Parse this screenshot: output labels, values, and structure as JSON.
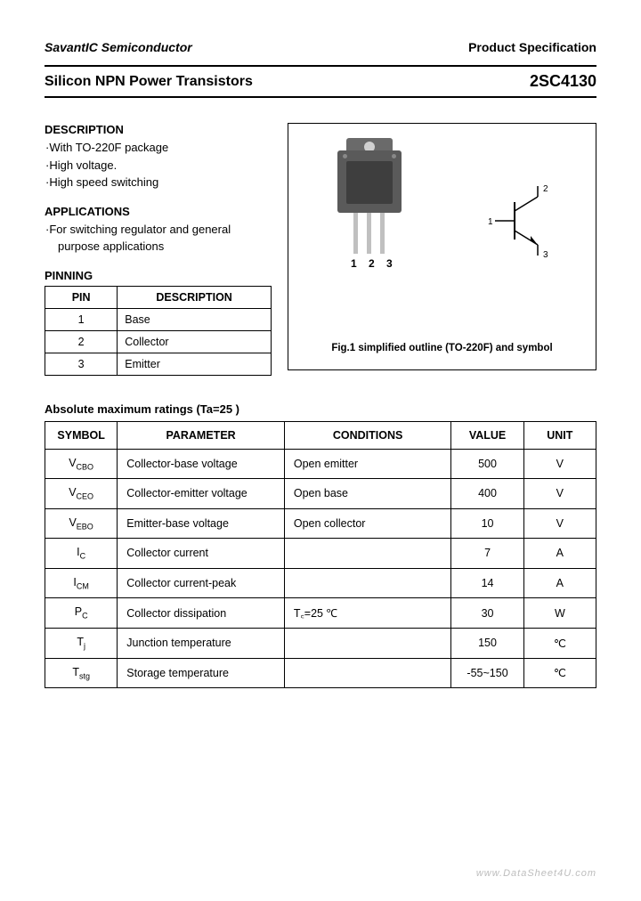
{
  "header": {
    "company": "SavantIC Semiconductor",
    "spec": "Product Specification"
  },
  "title": {
    "left": "Silicon NPN Power Transistors",
    "right": "2SC4130"
  },
  "description": {
    "heading": "DESCRIPTION",
    "items": [
      "·With TO-220F package",
      "·High voltage.",
      "·High speed switching"
    ]
  },
  "applications": {
    "heading": "APPLICATIONS",
    "line1": "·For switching regulator and general",
    "line2": "purpose applications"
  },
  "pinning": {
    "heading": "PINNING",
    "col_pin": "PIN",
    "col_desc": "DESCRIPTION",
    "rows": [
      {
        "pin": "1",
        "desc": "Base"
      },
      {
        "pin": "2",
        "desc": "Collector"
      },
      {
        "pin": "3",
        "desc": "Emitter"
      }
    ]
  },
  "figure": {
    "pin_labels": "1 2 3",
    "caption": "Fig.1 simplified outline (TO-220F) and symbol",
    "sym_labels": {
      "n1": "1",
      "n2": "2",
      "n3": "3"
    }
  },
  "ratings": {
    "heading": "Absolute maximum ratings (Ta=25 )",
    "headers": {
      "symbol": "SYMBOL",
      "parameter": "PARAMETER",
      "conditions": "CONDITIONS",
      "value": "VALUE",
      "unit": "UNIT"
    },
    "rows": [
      {
        "sym": "V",
        "sub": "CBO",
        "param": "Collector-base voltage",
        "cond": "Open emitter",
        "val": "500",
        "unit": "V"
      },
      {
        "sym": "V",
        "sub": "CEO",
        "param": "Collector-emitter voltage",
        "cond": "Open base",
        "val": "400",
        "unit": "V"
      },
      {
        "sym": "V",
        "sub": "EBO",
        "param": "Emitter-base voltage",
        "cond": "Open collector",
        "val": "10",
        "unit": "V"
      },
      {
        "sym": "I",
        "sub": "C",
        "param": "Collector current",
        "cond": "",
        "val": "7",
        "unit": "A"
      },
      {
        "sym": "I",
        "sub": "CM",
        "param": "Collector current-peak",
        "cond": "",
        "val": "14",
        "unit": "A"
      },
      {
        "sym": "P",
        "sub": "C",
        "param": "Collector dissipation",
        "cond": "T꜀=25 ℃",
        "val": "30",
        "unit": "W"
      },
      {
        "sym": "T",
        "sub": "j",
        "param": "Junction temperature",
        "cond": "",
        "val": "150",
        "unit": "℃"
      },
      {
        "sym": "T",
        "sub": "stg",
        "param": "Storage temperature",
        "cond": "",
        "val": "-55~150",
        "unit": "℃"
      }
    ]
  },
  "watermark": "www.DataSheet4U.com"
}
